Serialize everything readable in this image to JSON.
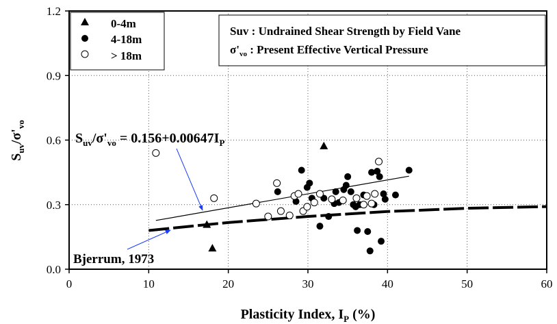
{
  "chart_data": {
    "type": "scatter",
    "xlabel": "Plasticity Index, I",
    "xlabel_sub": "P",
    "xlabel_unit": " (%)",
    "ylabel": "S",
    "ylabel_sub1": "uv",
    "ylabel_sep": "/σ'",
    "ylabel_sub2": "vo",
    "xlim": [
      0,
      60
    ],
    "ylim": [
      0,
      1.2
    ],
    "x_ticks": [
      0,
      10,
      20,
      30,
      40,
      50,
      60
    ],
    "x_tick_labels": [
      "0",
      "10",
      "20",
      "30",
      "40",
      "50",
      "60"
    ],
    "y_ticks": [
      0,
      0.3,
      0.6,
      0.9,
      1.2
    ],
    "y_tick_labels": [
      "0.0",
      "0.3",
      "0.6",
      "0.9",
      "1.2"
    ],
    "grid": "dotted",
    "legend": {
      "placement": "top-left",
      "entries": [
        "0-4m",
        "4-18m",
        "> 18m"
      ]
    },
    "definitions": {
      "line1_sym": "Suv",
      "line1_text": " : Undrained Shear Strength by Field Vane",
      "line2_sym": "σ'",
      "line2_sub": "vo",
      "line2_text": " : Present Effective Vertical Pressure"
    },
    "series": [
      {
        "name": "0-4m",
        "marker": "triangle-filled",
        "x": [
          17.3,
          18.0,
          32.0
        ],
        "y": [
          0.205,
          0.095,
          0.57
        ]
      },
      {
        "name": "4-18m",
        "marker": "circle-filled",
        "x": [
          26.2,
          28.5,
          29.2,
          29.9,
          30.2,
          30.5,
          31.5,
          32.0,
          32.6,
          33.3,
          33.5,
          33.9,
          34.5,
          34.8,
          35.0,
          35.4,
          35.7,
          36.0,
          36.2,
          36.5,
          37.0,
          37.5,
          37.8,
          38.0,
          38.3,
          38.7,
          39.0,
          39.2,
          39.5,
          39.7,
          41.0,
          42.7
        ],
        "y": [
          0.36,
          0.315,
          0.46,
          0.38,
          0.4,
          0.33,
          0.2,
          0.33,
          0.245,
          0.305,
          0.36,
          0.31,
          0.37,
          0.39,
          0.43,
          0.36,
          0.3,
          0.29,
          0.18,
          0.3,
          0.345,
          0.175,
          0.085,
          0.45,
          0.3,
          0.455,
          0.43,
          0.13,
          0.35,
          0.325,
          0.345,
          0.46
        ]
      },
      {
        "name": "> 18m",
        "marker": "circle-open",
        "x": [
          10.9,
          18.2,
          23.5,
          25.0,
          26.1,
          26.6,
          27.7,
          28.3,
          28.8,
          29.4,
          29.9,
          30.8,
          31.5,
          33.0,
          34.4,
          36.1,
          37.0,
          37.4,
          38.0,
          38.4,
          38.9
        ],
        "y": [
          0.54,
          0.33,
          0.305,
          0.245,
          0.4,
          0.27,
          0.25,
          0.34,
          0.35,
          0.27,
          0.29,
          0.31,
          0.35,
          0.325,
          0.32,
          0.33,
          0.3,
          0.34,
          0.305,
          0.35,
          0.5
        ]
      }
    ],
    "regression": {
      "label_main": "S",
      "label_sub1": "uv",
      "label_sep": "/σ'",
      "label_sub2": "vo",
      "label_eq": " = 0.156+0.00647I",
      "label_sub3": "P",
      "intercept": 0.156,
      "slope": 0.00647,
      "x_range": [
        10.9,
        42.7
      ]
    },
    "bjerrum": {
      "label": "Bjerrum, 1973",
      "x": [
        10,
        20,
        30,
        40,
        50,
        60
      ],
      "y": [
        0.18,
        0.217,
        0.245,
        0.268,
        0.283,
        0.291
      ]
    }
  }
}
